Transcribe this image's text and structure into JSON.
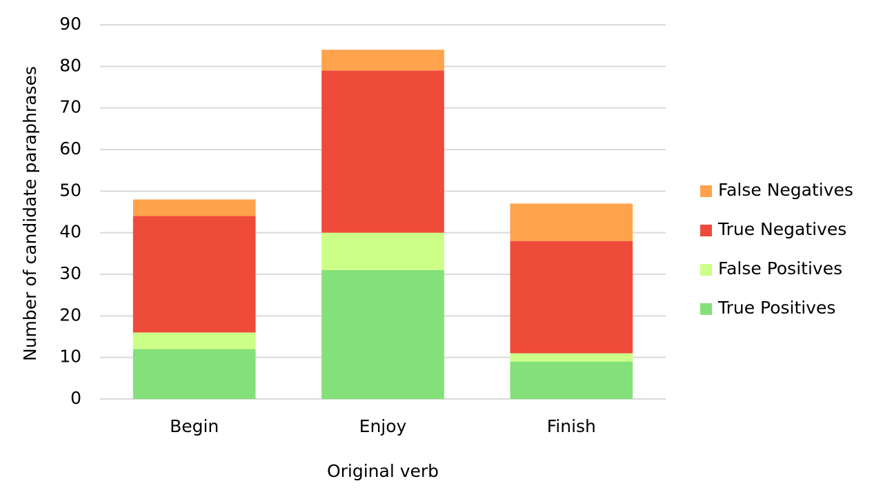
{
  "chart_data": {
    "type": "stacked-bar",
    "x_label": "Original verb",
    "y_label": "Number of candidate paraphrases",
    "categories": [
      "Begin",
      "Enjoy",
      "Finish"
    ],
    "series": [
      {
        "name": "True Positives",
        "color": "#84e07a",
        "values": [
          12,
          31,
          9
        ]
      },
      {
        "name": "False Positives",
        "color": "#ccff88",
        "values": [
          4,
          9,
          2
        ]
      },
      {
        "name": "True Negatives",
        "color": "#ee4b3b",
        "values": [
          28,
          39,
          27
        ]
      },
      {
        "name": "False Negatives",
        "color": "#ffa34d",
        "values": [
          4,
          5,
          9
        ]
      }
    ],
    "ylim": [
      0,
      90
    ],
    "yticks": [
      0,
      10,
      20,
      30,
      40,
      50,
      60,
      70,
      80,
      90
    ],
    "grid": true,
    "legend": "right"
  }
}
